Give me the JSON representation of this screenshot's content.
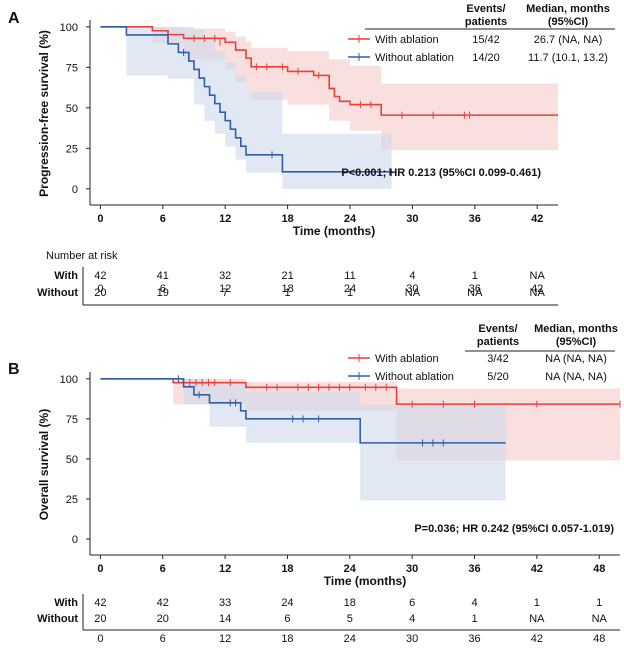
{
  "colors": {
    "with": "#e8413c",
    "without": "#2f5fa7",
    "with_band": "#f7c9c9",
    "without_band": "#cdd8ec",
    "axis": "#222222"
  },
  "chart_data": [
    {
      "panel_label": "A",
      "type": "kaplan-meier",
      "ylabel": "Progression-free survival  (%)",
      "xlabel": "Time (months)",
      "xlim": [
        -1,
        44
      ],
      "ylim": [
        -10,
        103
      ],
      "xticks": [
        0,
        6,
        12,
        18,
        24,
        30,
        36,
        42
      ],
      "yticks": [
        0,
        25,
        50,
        75,
        100
      ],
      "legend_header": {
        "events": "Events/\npatients",
        "median": "Median, months\n(95%CI)"
      },
      "series": [
        {
          "name": "With ablation",
          "group": "with",
          "events": "15/42",
          "median": "26.7 (NA, NA)",
          "steps": [
            [
              0,
              100
            ],
            [
              5,
              97.6
            ],
            [
              6.5,
              95.2
            ],
            [
              8,
              92.9
            ],
            [
              12,
              90.5
            ],
            [
              13,
              85.7
            ],
            [
              14,
              80.7
            ],
            [
              14.5,
              75.3
            ],
            [
              18,
              72.5
            ],
            [
              20.5,
              70
            ],
            [
              22,
              62
            ],
            [
              22.5,
              57
            ],
            [
              23,
              54
            ],
            [
              24,
              52
            ],
            [
              27,
              45.5
            ],
            [
              44,
              45.5
            ]
          ],
          "end_x": 44,
          "censors": [
            [
              9,
              92.9
            ],
            [
              10,
              92.9
            ],
            [
              11,
              92.9
            ],
            [
              11.5,
              90.5
            ],
            [
              15,
              75.3
            ],
            [
              16,
              75.3
            ],
            [
              17.5,
              75.3
            ],
            [
              19,
              72.5
            ],
            [
              21,
              70
            ],
            [
              25,
              52
            ],
            [
              26,
              52
            ],
            [
              29,
              45.5
            ],
            [
              32,
              45.5
            ],
            [
              35,
              45.5
            ],
            [
              35.5,
              45.5
            ]
          ],
          "band": [
            [
              0,
              100,
              100
            ],
            [
              5,
              100,
              90
            ],
            [
              8,
              99,
              80
            ],
            [
              12,
              97,
              74
            ],
            [
              13,
              94,
              66
            ],
            [
              14,
              91,
              60
            ],
            [
              14.5,
              87,
              55
            ],
            [
              18,
              85,
              52
            ],
            [
              22,
              80,
              42
            ],
            [
              24,
              76,
              36
            ],
            [
              27,
              65,
              24
            ],
            [
              44,
              65,
              24
            ]
          ]
        },
        {
          "name": "Without  ablation",
          "group": "without",
          "events": "14/20",
          "median": "11.7 (10.1, 13.2)",
          "steps": [
            [
              0,
              100
            ],
            [
              2.5,
              95
            ],
            [
              6.5,
              89.5
            ],
            [
              7.5,
              84.2
            ],
            [
              8.5,
              78.9
            ],
            [
              9,
              73.7
            ],
            [
              9.5,
              68.4
            ],
            [
              10,
              63.1
            ],
            [
              10.5,
              57.8
            ],
            [
              11,
              52.6
            ],
            [
              11.5,
              47.3
            ],
            [
              12,
              42.1
            ],
            [
              12.5,
              36.8
            ],
            [
              13,
              31.5
            ],
            [
              13.5,
              26.3
            ],
            [
              14,
              21
            ],
            [
              17.5,
              10.5
            ],
            [
              28,
              10.5
            ]
          ],
          "end_x": 28,
          "censors": [
            [
              8,
              84.2
            ],
            [
              16.5,
              21
            ],
            [
              27.8,
              10.5
            ]
          ],
          "band": [
            [
              0,
              100,
              100
            ],
            [
              2.5,
              100,
              70
            ],
            [
              6.5,
              100,
              68
            ],
            [
              9,
              98,
              52
            ],
            [
              10,
              92,
              42
            ],
            [
              11,
              85,
              34
            ],
            [
              12,
              78,
              26
            ],
            [
              13,
              70,
              18
            ],
            [
              14,
              60,
              10
            ],
            [
              17.5,
              34,
              0
            ],
            [
              28,
              34,
              0
            ]
          ]
        }
      ],
      "stat_text": "P<0.001; HR 0.213 (95%CI 0.099-0.461)",
      "risk_table": {
        "title": "Number at risk",
        "times": [
          "0",
          "6",
          "12",
          "18",
          "24",
          "30",
          "36",
          "42"
        ],
        "rows": [
          {
            "label": "With",
            "group": "with",
            "values": [
              "42",
              "41",
              "32",
              "21",
              "11",
              "4",
              "1",
              "NA"
            ]
          },
          {
            "label": "Without",
            "group": "without",
            "values": [
              "20",
              "19",
              "7",
              "1",
              "1",
              "NA",
              "NA",
              "NA"
            ]
          }
        ]
      }
    },
    {
      "panel_label": "B",
      "type": "kaplan-meier",
      "ylabel": "Overall survival  (%)",
      "xlabel": "Time (months)",
      "xlim": [
        -1,
        50
      ],
      "ylim": [
        -10,
        103
      ],
      "xticks": [
        0,
        6,
        12,
        18,
        24,
        30,
        36,
        42,
        48
      ],
      "yticks": [
        0,
        25,
        50,
        75,
        100
      ],
      "legend_header": {
        "events": "Events/\npatients",
        "median": "Median, months\n(95%CI)"
      },
      "series": [
        {
          "name": "With ablation",
          "group": "with",
          "events": "3/42",
          "median": "NA (NA, NA)",
          "steps": [
            [
              0,
              100
            ],
            [
              7,
              97.6
            ],
            [
              14,
              94.7
            ],
            [
              28.5,
              84.2
            ],
            [
              50,
              84.2
            ]
          ],
          "end_x": 50,
          "censors": [
            [
              8,
              97.6
            ],
            [
              8.6,
              97.6
            ],
            [
              9.2,
              97.6
            ],
            [
              9.8,
              97.6
            ],
            [
              10.4,
              97.6
            ],
            [
              11,
              97.6
            ],
            [
              12.5,
              97.6
            ],
            [
              16,
              94.7
            ],
            [
              17,
              94.7
            ],
            [
              19,
              94.7
            ],
            [
              20,
              94.7
            ],
            [
              21,
              94.7
            ],
            [
              22,
              94.7
            ],
            [
              23,
              94.7
            ],
            [
              24,
              94.7
            ],
            [
              25.5,
              94.7
            ],
            [
              26.5,
              94.7
            ],
            [
              27.5,
              94.7
            ],
            [
              30,
              84.2
            ],
            [
              33,
              84.2
            ],
            [
              36,
              84.2
            ],
            [
              42,
              84.2
            ],
            [
              50,
              84.2
            ]
          ],
          "band": [
            [
              0,
              100,
              100
            ],
            [
              7,
              100,
              84
            ],
            [
              14,
              98,
              80
            ],
            [
              28.5,
              94,
              49
            ],
            [
              50,
              94,
              49
            ]
          ]
        },
        {
          "name": "Without  ablation",
          "group": "without",
          "events": "5/20",
          "median": "NA (NA, NA)",
          "steps": [
            [
              0,
              100
            ],
            [
              8,
              95
            ],
            [
              9,
              90
            ],
            [
              10.5,
              85
            ],
            [
              13.5,
              80
            ],
            [
              14,
              75
            ],
            [
              25,
              60
            ],
            [
              39,
              60
            ]
          ],
          "end_x": 39,
          "censors": [
            [
              7.5,
              100
            ],
            [
              9.5,
              90
            ],
            [
              12.5,
              85
            ],
            [
              13,
              85
            ],
            [
              18.5,
              75
            ],
            [
              19.5,
              75
            ],
            [
              21,
              75
            ],
            [
              31,
              60
            ],
            [
              32,
              60
            ],
            [
              33,
              60
            ]
          ],
          "band": [
            [
              0,
              100,
              100
            ],
            [
              8,
              100,
              84
            ],
            [
              10.5,
              98,
              70
            ],
            [
              14,
              92,
              60
            ],
            [
              25,
              84,
              24
            ],
            [
              39,
              84,
              24
            ]
          ]
        }
      ],
      "stat_text": "P=0.036; HR 0.242 (95%CI 0.057-1.019)",
      "risk_table": {
        "title": "",
        "times": [
          "0",
          "6",
          "12",
          "18",
          "24",
          "30",
          "36",
          "42",
          "48"
        ],
        "rows": [
          {
            "label": "With",
            "group": "with",
            "values": [
              "42",
              "42",
              "33",
              "24",
              "18",
              "6",
              "4",
              "1",
              "1"
            ]
          },
          {
            "label": "Without",
            "group": "without",
            "values": [
              "20",
              "20",
              "14",
              "6",
              "5",
              "4",
              "1",
              "NA",
              "NA"
            ]
          }
        ]
      }
    }
  ]
}
